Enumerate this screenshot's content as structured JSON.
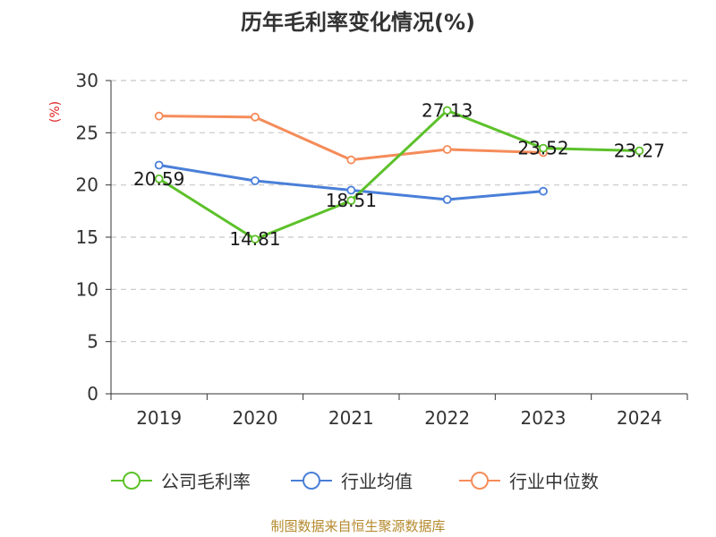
{
  "chart_data": {
    "type": "line",
    "title": "历年毛利率变化情况(%)",
    "ylabel": "(%)",
    "categories": [
      "2019",
      "2020",
      "2021",
      "2022",
      "2023",
      "2024"
    ],
    "ylim": [
      0,
      30
    ],
    "yticks": [
      0,
      5,
      10,
      15,
      20,
      25,
      30
    ],
    "grid": true,
    "legend_position": "bottom",
    "series": [
      {
        "name": "公司毛利率",
        "color": "#5cc12a",
        "values": [
          20.59,
          14.81,
          18.51,
          27.13,
          23.52,
          23.27
        ],
        "labels": [
          "20.59",
          "14.81",
          "18.51",
          "27.13",
          "23.52",
          "23.27"
        ]
      },
      {
        "name": "行业均值",
        "color": "#4a7fd8",
        "values": [
          21.9,
          20.4,
          19.5,
          18.6,
          19.4,
          null
        ]
      },
      {
        "name": "行业中位数",
        "color": "#f58c5a",
        "values": [
          26.6,
          26.5,
          22.4,
          23.4,
          23.1,
          null
        ]
      }
    ],
    "source": "制图数据来自恒生聚源数据库"
  }
}
